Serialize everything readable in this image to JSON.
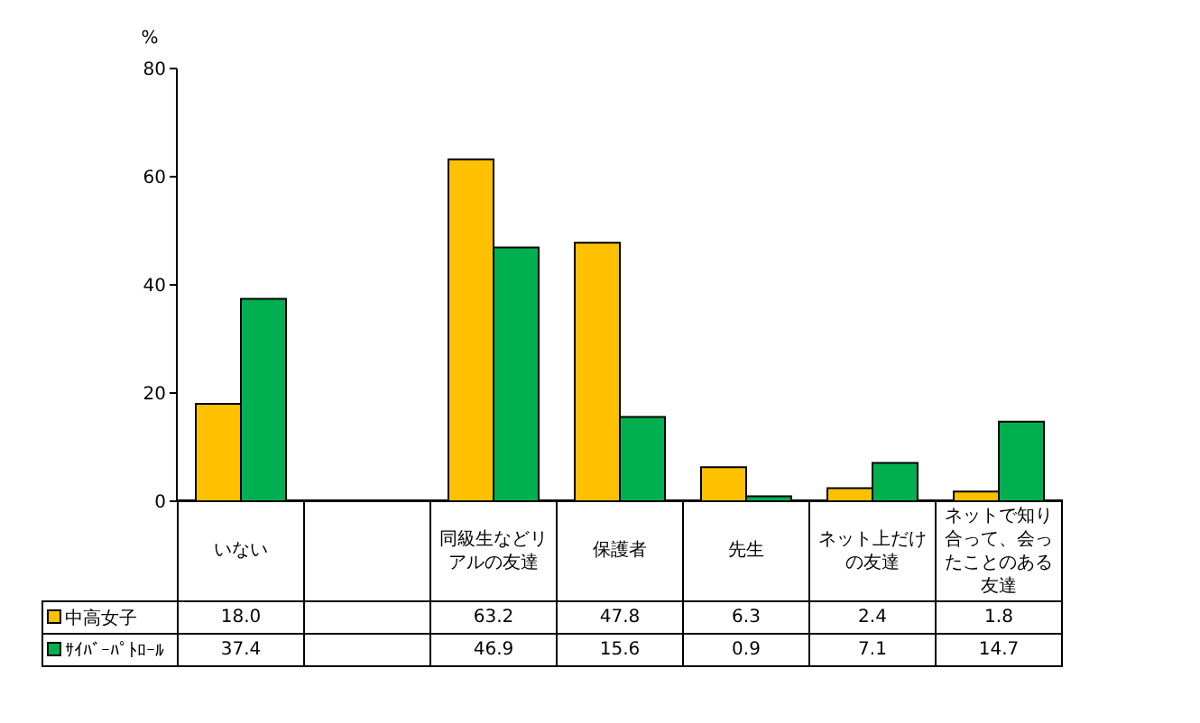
{
  "chart_data": {
    "type": "bar",
    "ylabel": "%",
    "categories": [
      "いない",
      null,
      "同級生などリアルの友達",
      "保護者",
      "先生",
      "ネット上だけの友達",
      "ネットで知り合って、会ったことのある友達"
    ],
    "series": [
      {
        "name": "中高女子",
        "color": "#ffc000",
        "values": [
          18.0,
          null,
          63.2,
          47.8,
          6.3,
          2.4,
          1.8
        ],
        "value_labels": [
          "18.0",
          null,
          "63.2",
          "47.8",
          "6.3",
          "2.4",
          "1.8"
        ]
      },
      {
        "name": "ｻｲﾊﾞｰﾊﾟﾄﾛｰﾙ",
        "color": "#00b050",
        "values": [
          37.4,
          null,
          46.9,
          15.6,
          0.9,
          7.1,
          14.7
        ],
        "value_labels": [
          "37.4",
          null,
          "46.9",
          "15.6",
          "0.9",
          "7.1",
          "14.7"
        ]
      }
    ],
    "ylim": [
      0,
      80
    ],
    "yticks": [
      0,
      20,
      40,
      60,
      80
    ],
    "grid": false,
    "legend": "bottom left"
  }
}
